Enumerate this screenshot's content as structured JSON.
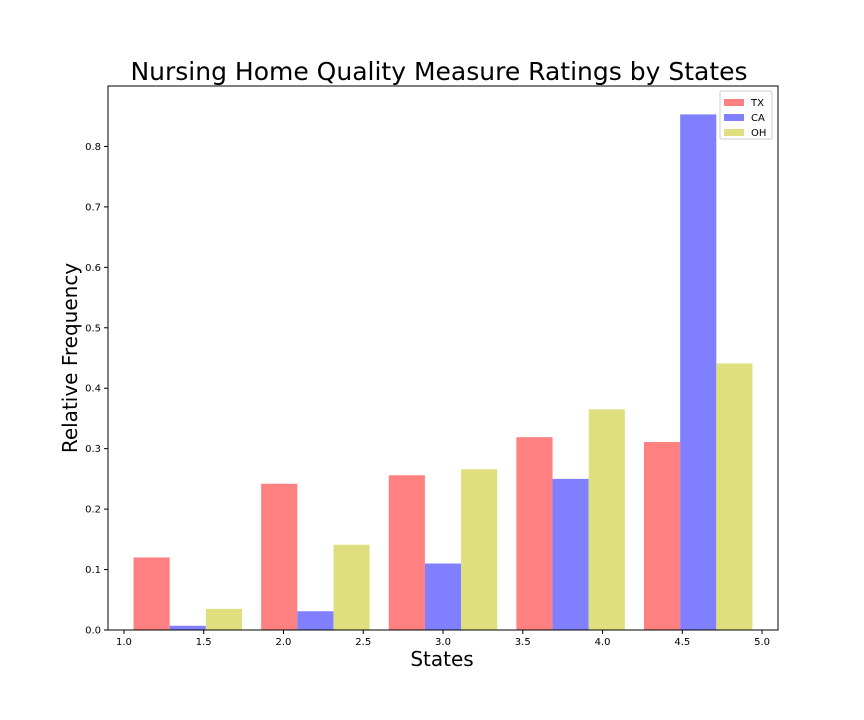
{
  "chart_data": {
    "type": "bar",
    "title": "Nursing Home Quality Measure Ratings by States",
    "xlabel": "States",
    "ylabel": "Relative Frequency",
    "xlim": [
      0.9,
      5.1
    ],
    "ylim": [
      0,
      0.9
    ],
    "xticks": [
      "1.0",
      "1.5",
      "2.0",
      "2.5",
      "3.0",
      "3.5",
      "4.0",
      "4.5",
      "5.0"
    ],
    "yticks": [
      "0.0",
      "0.1",
      "0.2",
      "0.3",
      "0.4",
      "0.5",
      "0.6",
      "0.7",
      "0.8"
    ],
    "bin_edges": [
      1.0,
      1.8,
      2.6,
      3.4,
      4.2,
      5.0
    ],
    "grid": false,
    "legend_position": "top-right",
    "series": [
      {
        "name": "TX",
        "color": "#ff8080",
        "values": [
          0.12,
          0.242,
          0.256,
          0.319,
          0.311
        ]
      },
      {
        "name": "CA",
        "color": "#8080ff",
        "values": [
          0.007,
          0.031,
          0.11,
          0.25,
          0.853
        ]
      },
      {
        "name": "OH",
        "color": "#dfdf80",
        "values": [
          0.035,
          0.141,
          0.266,
          0.365,
          0.441
        ]
      }
    ]
  }
}
